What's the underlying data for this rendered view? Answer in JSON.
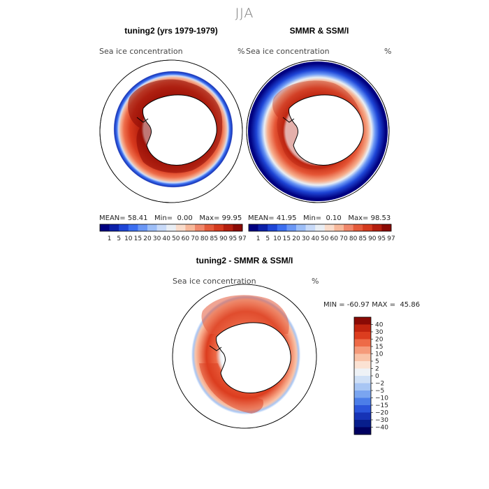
{
  "season": "JJA",
  "panels": [
    {
      "title": "tuning2 (yrs 1979-1979)",
      "variable_label": "Sea ice concentration",
      "unit": "%",
      "stats": {
        "mean_label": "MEAN=",
        "mean": "58.41",
        "min_label": "Min=",
        "min": "0.00",
        "max_label": "Max=",
        "max": "99.95"
      }
    },
    {
      "title": "SMMR & SSM/I",
      "variable_label": "Sea ice concentration",
      "unit": "%",
      "stats": {
        "mean_label": "MEAN=",
        "mean": "41.95",
        "min_label": "Min=",
        "min": "0.10",
        "max_label": "Max=",
        "max": "98.53"
      }
    },
    {
      "title": "tuning2 - SMMR & SSM/I",
      "variable_label": "Sea ice concentration",
      "unit": "%",
      "stats_text": "MIN = -60.97 MAX =  45.86"
    }
  ],
  "concentration_colorbar": {
    "colors": [
      "#000080",
      "#0b1fa8",
      "#1e45d6",
      "#3b6ef0",
      "#6a97f5",
      "#9dbef7",
      "#c8daf8",
      "#e9eef4",
      "#f9dccb",
      "#f7b89a",
      "#f0876a",
      "#e45a3a",
      "#d43a1e",
      "#b31e0e",
      "#8a0a05"
    ],
    "ticks": [
      "1",
      "5",
      "10",
      "15",
      "20",
      "30",
      "40",
      "50",
      "60",
      "70",
      "80",
      "85",
      "90",
      "95",
      "97"
    ]
  },
  "difference_colorbar": {
    "colors_top_to_bottom": [
      "#8a0a05",
      "#c1240f",
      "#dc3d1f",
      "#ee6a47",
      "#f59a7a",
      "#f9c3a8",
      "#fbe2d3",
      "#eef2f6",
      "#cfe0f6",
      "#a8c6f4",
      "#7aa5f0",
      "#4c7ee8",
      "#2b55da",
      "#1633b6",
      "#071e8c",
      "#000060"
    ],
    "labels_top_to_bottom": [
      "40",
      "30",
      "20",
      "15",
      "10",
      "5",
      "2",
      "0",
      "−2",
      "−5",
      "−10",
      "−15",
      "−20",
      "−30",
      "−40"
    ]
  },
  "icons": {
    "projection": "south-polar-stereographic-map"
  }
}
